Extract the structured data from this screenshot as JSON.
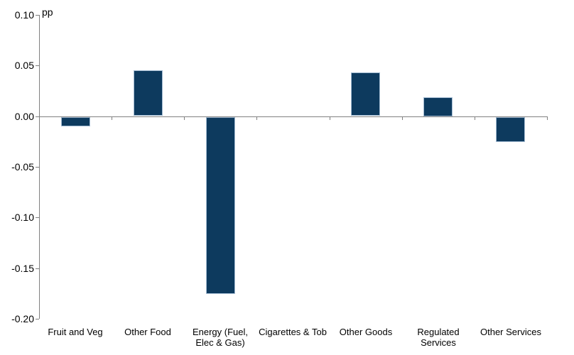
{
  "chart_data": {
    "type": "bar",
    "title": "",
    "ylabel": "pp",
    "xlabel": "",
    "categories": [
      "Fruit and Veg",
      "Other Food",
      "Energy (Fuel, Elec & Gas)",
      "Cigarettes & Tob",
      "Other Goods",
      "Regulated Services",
      "Other Services"
    ],
    "values": [
      -0.01,
      0.045,
      -0.175,
      0.0,
      0.043,
      0.019,
      -0.025
    ],
    "ylim": [
      -0.2,
      0.1
    ],
    "yticks": [
      0.1,
      0.05,
      0.0,
      -0.05,
      -0.1,
      -0.15,
      -0.2
    ],
    "ytick_labels": [
      "0.10",
      "0.05",
      "0.00",
      "-0.05",
      "-0.10",
      "-0.15",
      "-0.20"
    ],
    "grid": false,
    "legend": "none",
    "colors": {
      "bar_fill": "#0d3a5e",
      "bar_border": "#a3bbd2",
      "axis": "#808080",
      "text": "#000000",
      "background": "#ffffff"
    }
  }
}
